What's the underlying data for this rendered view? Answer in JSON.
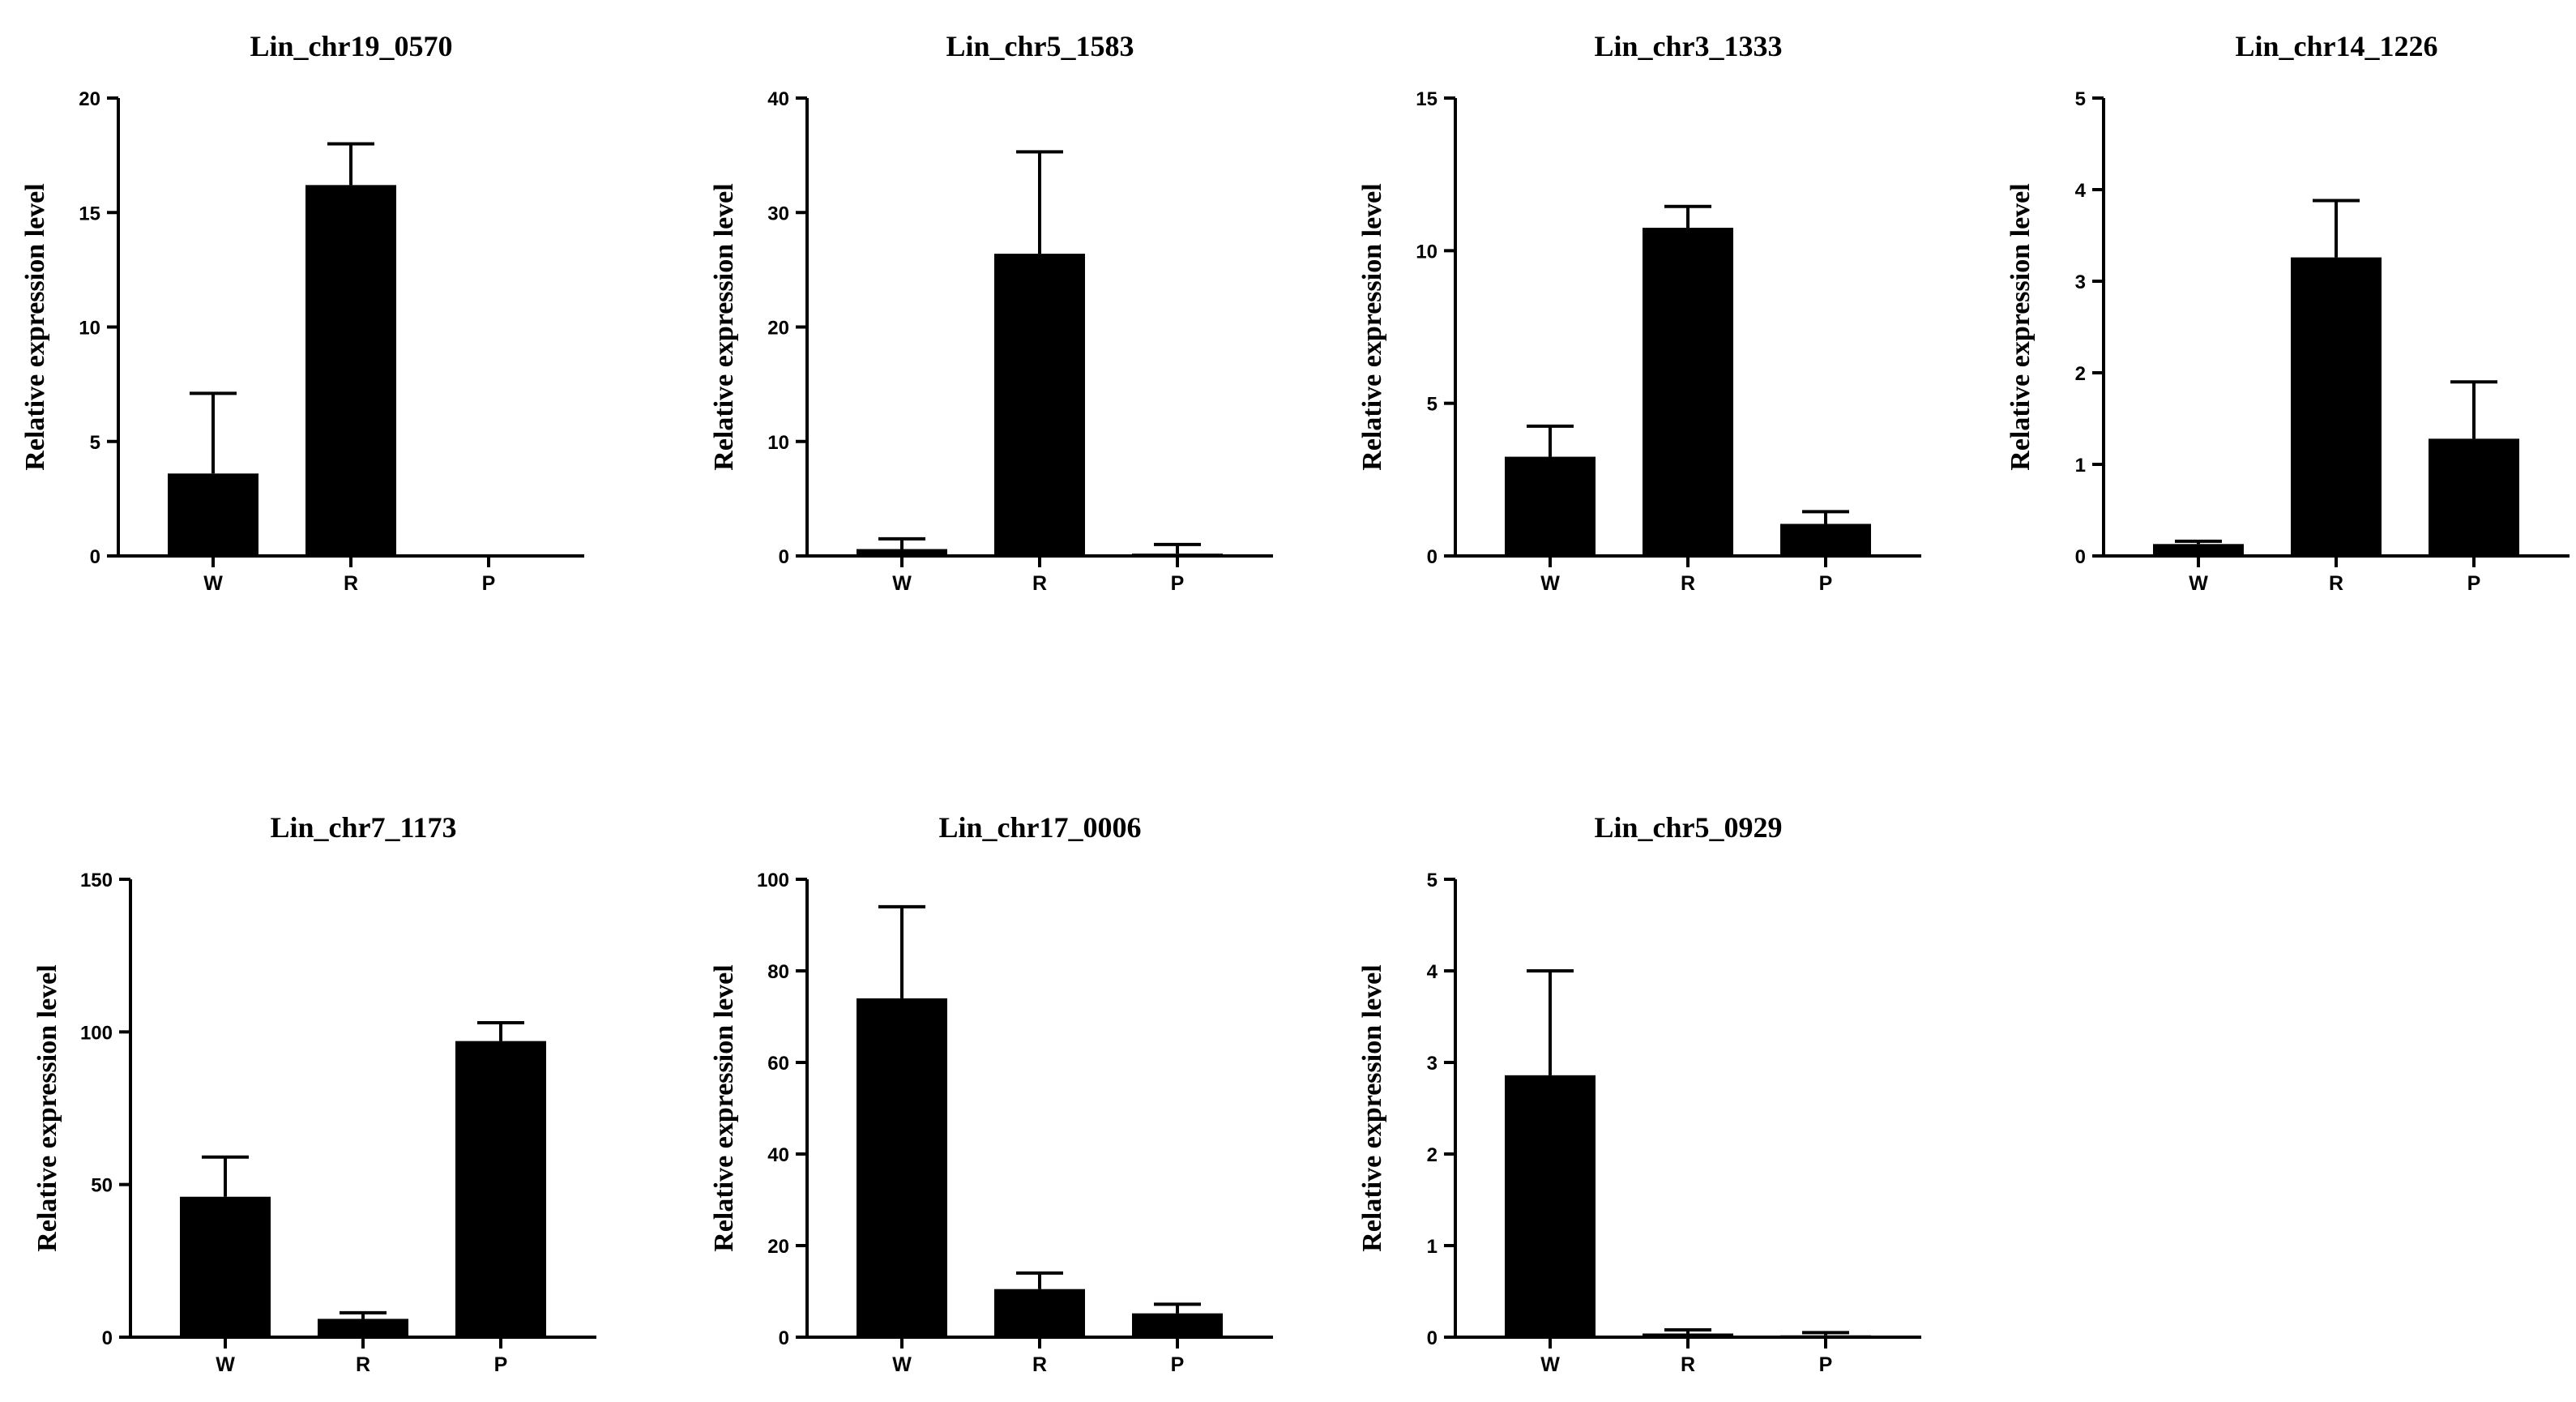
{
  "chart_data": [
    {
      "type": "bar",
      "title": "Lin_chr19_0570",
      "ylabel": "Relative expression level",
      "categories": [
        "W",
        "R",
        "P"
      ],
      "values": [
        3.6,
        16.2,
        0
      ],
      "errors": [
        3.5,
        1.8,
        0
      ],
      "ylim": [
        0,
        20
      ],
      "yticks": [
        0,
        5,
        10,
        15,
        20
      ],
      "bar_color": "#000000",
      "grid": false
    },
    {
      "type": "bar",
      "title": "Lin_chr5_1583",
      "ylabel": "Relative expression level",
      "categories": [
        "W",
        "R",
        "P"
      ],
      "values": [
        0.6,
        26.4,
        0.2
      ],
      "errors": [
        0.9,
        8.9,
        0.8
      ],
      "ylim": [
        0,
        40
      ],
      "yticks": [
        0,
        10,
        20,
        30,
        40
      ],
      "bar_color": "#000000",
      "grid": false
    },
    {
      "type": "bar",
      "title": "Lin_chr3_1333",
      "ylabel": "Relative expression level",
      "categories": [
        "W",
        "R",
        "P"
      ],
      "values": [
        3.25,
        10.75,
        1.05
      ],
      "errors": [
        1.0,
        0.7,
        0.4
      ],
      "ylim": [
        0,
        15
      ],
      "yticks": [
        0,
        5,
        10,
        15
      ],
      "bar_color": "#000000",
      "grid": false
    },
    {
      "type": "bar",
      "title": "Lin_chr14_1226",
      "ylabel": "Relative expression level",
      "categories": [
        "W",
        "R",
        "P"
      ],
      "values": [
        0.13,
        3.26,
        1.28
      ],
      "errors": [
        0.03,
        0.62,
        0.62
      ],
      "ylim": [
        0,
        5
      ],
      "yticks": [
        0,
        1,
        2,
        3,
        4,
        5
      ],
      "bar_color": "#000000",
      "grid": false
    },
    {
      "type": "bar",
      "title": "Lin_chr7_1173",
      "ylabel": "Relative expression level",
      "categories": [
        "W",
        "R",
        "P"
      ],
      "values": [
        46,
        6,
        97
      ],
      "errors": [
        13,
        2,
        6
      ],
      "ylim": [
        0,
        150
      ],
      "yticks": [
        0,
        50,
        100,
        150
      ],
      "bar_color": "#000000",
      "grid": false
    },
    {
      "type": "bar",
      "title": "Lin_chr17_0006",
      "ylabel": "Relative expression level",
      "categories": [
        "W",
        "R",
        "P"
      ],
      "values": [
        74,
        10.5,
        5.2
      ],
      "errors": [
        20,
        3.5,
        2.0
      ],
      "ylim": [
        0,
        100
      ],
      "yticks": [
        0,
        20,
        40,
        60,
        80,
        100
      ],
      "bar_color": "#000000",
      "grid": false
    },
    {
      "type": "bar",
      "title": "Lin_chr5_0929",
      "ylabel": "Relative expression level",
      "categories": [
        "W",
        "R",
        "P"
      ],
      "values": [
        2.86,
        0.04,
        0.02
      ],
      "errors": [
        1.14,
        0.04,
        0.03
      ],
      "ylim": [
        0,
        5
      ],
      "yticks": [
        0,
        1,
        2,
        3,
        4,
        5
      ],
      "bar_color": "#000000",
      "grid": false
    }
  ]
}
